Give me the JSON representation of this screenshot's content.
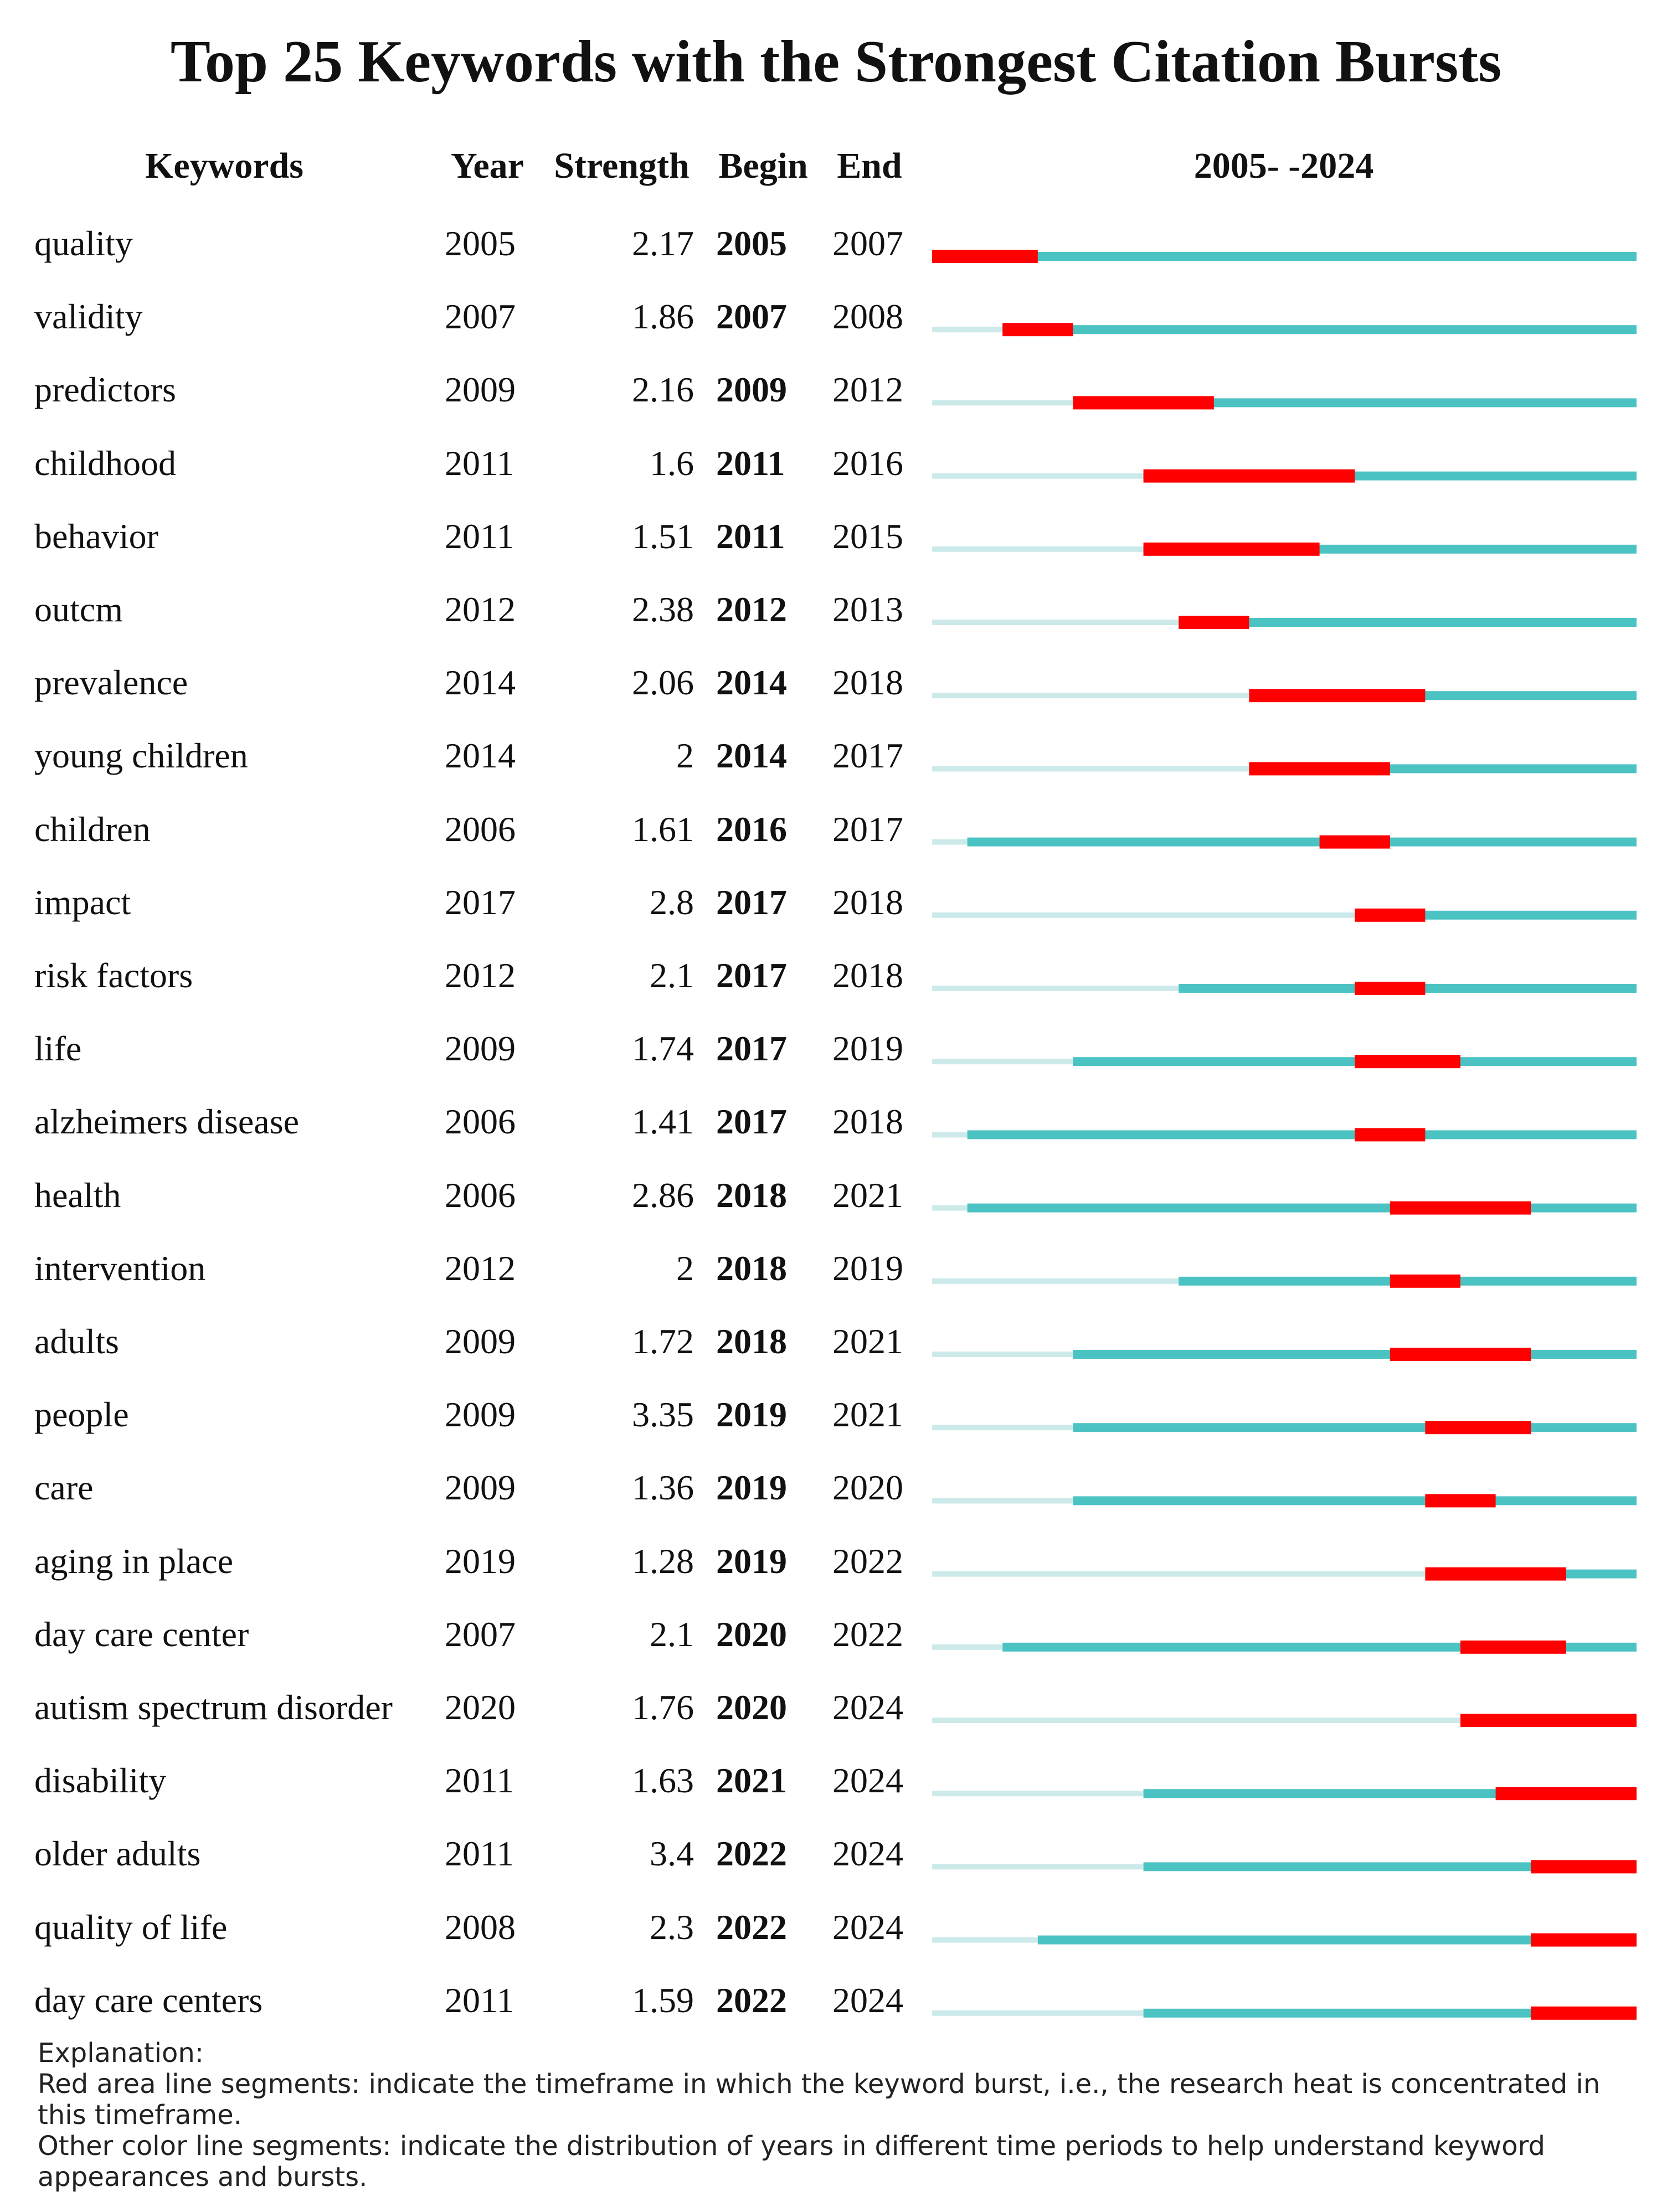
{
  "chart_data": {
    "type": "table",
    "title": "Top 25 Keywords with the Strongest Citation Bursts",
    "columns": {
      "keywords": "Keywords",
      "year": "Year",
      "strength": "Strength",
      "begin": "Begin",
      "end": "End",
      "range": "2005- -2024"
    },
    "range_start": 2005,
    "range_end": 2024,
    "rows": [
      {
        "keyword": "quality",
        "year": "2005",
        "strength": "2.17",
        "begin": "2005",
        "end": "2007"
      },
      {
        "keyword": "validity",
        "year": "2007",
        "strength": "1.86",
        "begin": "2007",
        "end": "2008"
      },
      {
        "keyword": "predictors",
        "year": "2009",
        "strength": "2.16",
        "begin": "2009",
        "end": "2012"
      },
      {
        "keyword": "childhood",
        "year": "2011",
        "strength": "1.6",
        "begin": "2011",
        "end": "2016"
      },
      {
        "keyword": "behavior",
        "year": "2011",
        "strength": "1.51",
        "begin": "2011",
        "end": "2015"
      },
      {
        "keyword": "outcm",
        "year": "2012",
        "strength": "2.38",
        "begin": "2012",
        "end": "2013"
      },
      {
        "keyword": "prevalence",
        "year": "2014",
        "strength": "2.06",
        "begin": "2014",
        "end": "2018"
      },
      {
        "keyword": "young children",
        "year": "2014",
        "strength": "2",
        "begin": "2014",
        "end": "2017"
      },
      {
        "keyword": "children",
        "year": "2006",
        "strength": "1.61",
        "begin": "2016",
        "end": "2017"
      },
      {
        "keyword": "impact",
        "year": "2017",
        "strength": "2.8",
        "begin": "2017",
        "end": "2018"
      },
      {
        "keyword": "risk factors",
        "year": "2012",
        "strength": "2.1",
        "begin": "2017",
        "end": "2018"
      },
      {
        "keyword": "life",
        "year": "2009",
        "strength": "1.74",
        "begin": "2017",
        "end": "2019"
      },
      {
        "keyword": "alzheimers disease",
        "year": "2006",
        "strength": "1.41",
        "begin": "2017",
        "end": "2018"
      },
      {
        "keyword": "health",
        "year": "2006",
        "strength": "2.86",
        "begin": "2018",
        "end": "2021"
      },
      {
        "keyword": "intervention",
        "year": "2012",
        "strength": "2",
        "begin": "2018",
        "end": "2019"
      },
      {
        "keyword": "adults",
        "year": "2009",
        "strength": "1.72",
        "begin": "2018",
        "end": "2021"
      },
      {
        "keyword": "people",
        "year": "2009",
        "strength": "3.35",
        "begin": "2019",
        "end": "2021"
      },
      {
        "keyword": "care",
        "year": "2009",
        "strength": "1.36",
        "begin": "2019",
        "end": "2020"
      },
      {
        "keyword": "aging in place",
        "year": "2019",
        "strength": "1.28",
        "begin": "2019",
        "end": "2022"
      },
      {
        "keyword": "day care center",
        "year": "2007",
        "strength": "2.1",
        "begin": "2020",
        "end": "2022"
      },
      {
        "keyword": "autism spectrum disorder",
        "year": "2020",
        "strength": "1.76",
        "begin": "2020",
        "end": "2024"
      },
      {
        "keyword": "disability",
        "year": "2011",
        "strength": "1.63",
        "begin": "2021",
        "end": "2024"
      },
      {
        "keyword": "older adults",
        "year": "2011",
        "strength": "3.4",
        "begin": "2022",
        "end": "2024"
      },
      {
        "keyword": "quality of life",
        "year": "2008",
        "strength": "2.3",
        "begin": "2022",
        "end": "2024"
      },
      {
        "keyword": "day care centers",
        "year": "2011",
        "strength": "1.59",
        "begin": "2022",
        "end": "2024"
      }
    ],
    "colors": {
      "burst": "#ff0000",
      "present": "#4cc3c3",
      "absent": "#cdeaea"
    }
  },
  "explanation": {
    "heading": "Explanation:",
    "line1": "Red area line segments: indicate the timeframe in which the keyword burst, i.e., the research heat is concentrated in this timeframe.",
    "line2": "Other color line segments: indicate the distribution of years in different time periods to help understand keyword appearances and bursts."
  }
}
